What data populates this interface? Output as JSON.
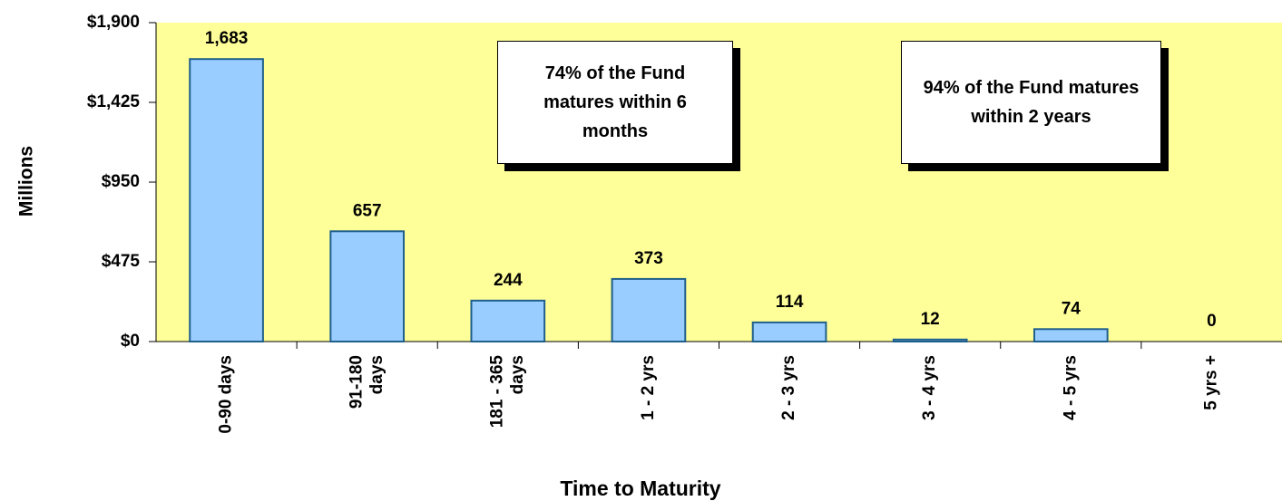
{
  "chart_data": {
    "type": "bar",
    "categories": [
      "0-90 days",
      "91-180 days",
      "181 - 365 days",
      "1 - 2 yrs",
      "2 - 3 yrs",
      "3 - 4 yrs",
      "4 - 5 yrs",
      "5 yrs +"
    ],
    "values": [
      1683,
      657,
      244,
      373,
      114,
      12,
      74,
      0
    ],
    "value_labels": [
      "1,683",
      "657",
      "244",
      "373",
      "114",
      "12",
      "74",
      "0"
    ],
    "color": "#99ccff",
    "edge_color": "#1f5f8b",
    "background": "#ffff99",
    "ylim": [
      0,
      1900
    ],
    "yticks": [
      {
        "value": 0,
        "label": "$0"
      },
      {
        "value": 475,
        "label": "$475"
      },
      {
        "value": 950,
        "label": "$950"
      },
      {
        "value": 1425,
        "label": "$1,425"
      },
      {
        "value": 1900,
        "label": "$1,900"
      }
    ],
    "y_label": "Millions",
    "x_label": "Time to Maturity",
    "grid": false,
    "annotations": [
      "74% of the Fund matures within 6 months",
      "94% of the Fund matures within 2 years"
    ]
  }
}
